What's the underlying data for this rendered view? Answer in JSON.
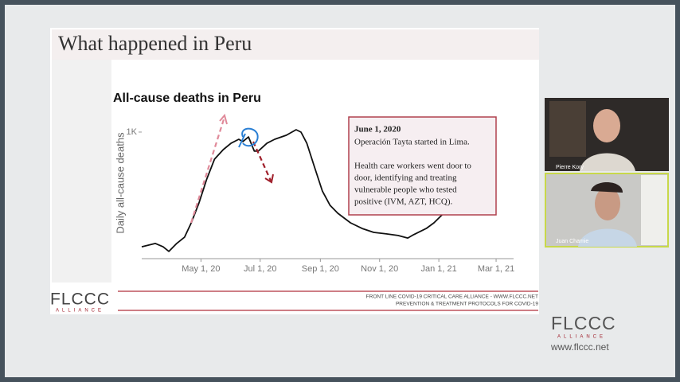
{
  "slide": {
    "title": "What happened in Peru",
    "chart": {
      "type": "line",
      "title": "All-cause deaths in Peru",
      "y_label": "Daily all-cause deaths",
      "color": "#111111",
      "x": [
        "2020-03-01",
        "2020-03-15",
        "2020-03-23",
        "2020-03-29",
        "2020-04-06",
        "2020-04-14",
        "2020-04-21",
        "2020-04-29",
        "2020-05-07",
        "2020-05-15",
        "2020-05-24",
        "2020-06-01",
        "2020-06-09",
        "2020-06-13",
        "2020-06-19",
        "2020-06-25",
        "2020-06-29",
        "2020-07-08",
        "2020-07-16",
        "2020-07-28",
        "2020-08-07",
        "2020-08-12",
        "2020-08-18",
        "2020-08-26",
        "2020-09-03",
        "2020-09-11",
        "2020-09-19",
        "2020-10-02",
        "2020-10-14",
        "2020-10-26",
        "2020-11-08",
        "2020-11-20",
        "2020-11-30",
        "2020-12-06",
        "2020-12-19",
        "2020-12-27",
        "2021-01-06"
      ],
      "values": [
        411,
        428,
        411,
        387,
        428,
        460,
        534,
        636,
        759,
        861,
        910,
        943,
        963,
        951,
        975,
        902,
        902,
        943,
        963,
        984,
        1012,
        1000,
        943,
        820,
        698,
        624,
        583,
        534,
        505,
        485,
        477,
        469,
        456,
        473,
        505,
        534,
        583
      ],
      "xlim": [
        "2020-03-01",
        "2021-03-19"
      ],
      "ylim": [
        350,
        1100
      ],
      "yticks": [
        {
          "value": 1000,
          "label": "1K"
        }
      ],
      "xticks": [
        {
          "value": "2020-05-01",
          "label": "May 1, 20"
        },
        {
          "value": "2020-07-01",
          "label": "Jul 1, 20"
        },
        {
          "value": "2020-09-01",
          "label": "Sep 1, 20"
        },
        {
          "value": "2020-11-01",
          "label": "Nov 1, 20"
        },
        {
          "value": "2021-01-01",
          "label": "Jan 1, 21"
        },
        {
          "value": "2021-03-01",
          "label": "Mar 1, 21"
        }
      ]
    },
    "annotation": {
      "heading": "June 1, 2020",
      "lines": [
        "Operación Tayta started in Lima.",
        "Health care workers went door to",
        "door, identifying and treating",
        "vulnerable people who tested",
        "positive (IVM, AZT, HCQ)."
      ]
    },
    "footer": {
      "logo": "FLCCC",
      "logo_sub": "ALLIANCE",
      "line1": "FRONT LINE COVID-19 CRITICAL CARE ALLIANCE - WWW.FLCCC.NET",
      "line2": "PREVENTION & TREATMENT PROTOCOLS FOR COVID-19"
    }
  },
  "participants": [
    {
      "name": "Pierre Kory"
    },
    {
      "name": "Juan Chamie"
    }
  ],
  "logo": {
    "text": "FLCCC",
    "sub": "ALLIANCE",
    "url": "www.flccc.net"
  }
}
